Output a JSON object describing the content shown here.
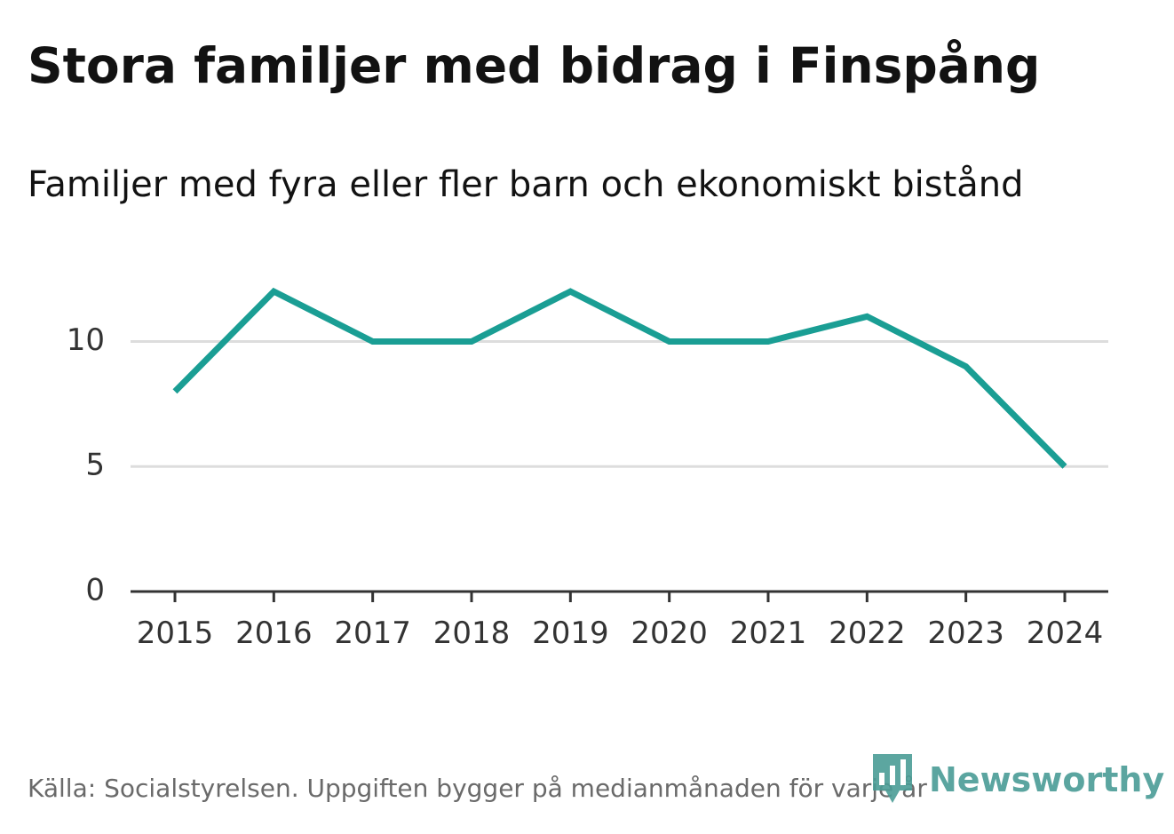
{
  "chart_data": {
    "type": "line",
    "title": "Stora familjer med bidrag i Finspång",
    "subtitle": "Familjer med fyra eller fler barn och ekonomiskt bistånd",
    "categories": [
      "2015",
      "2016",
      "2017",
      "2018",
      "2019",
      "2020",
      "2021",
      "2022",
      "2023",
      "2024"
    ],
    "series": [
      {
        "name": "Familjer med fyra eller fler barn och ekonomiskt bistånd",
        "values": [
          8,
          12,
          10,
          10,
          12,
          10,
          10,
          11,
          9,
          5
        ],
        "color": "#1a9e94"
      }
    ],
    "ylim": [
      0,
      13
    ],
    "yticks": [
      0,
      5,
      10
    ],
    "ytick_labels": [
      "0",
      "5",
      "10"
    ],
    "xlabel": "",
    "ylabel": "",
    "grid": true,
    "legend": "none",
    "colors": {
      "line": "#1a9e94",
      "grid": "#dddddd",
      "axis": "#333333"
    }
  },
  "footer": {
    "source": "Källa: Socialstyrelsen. Uppgiften bygger på medianmånaden för varje år"
  },
  "brand": {
    "name": "Newsworthy",
    "icon": "newsworthy-logo-icon",
    "color": "#4a9c96"
  }
}
